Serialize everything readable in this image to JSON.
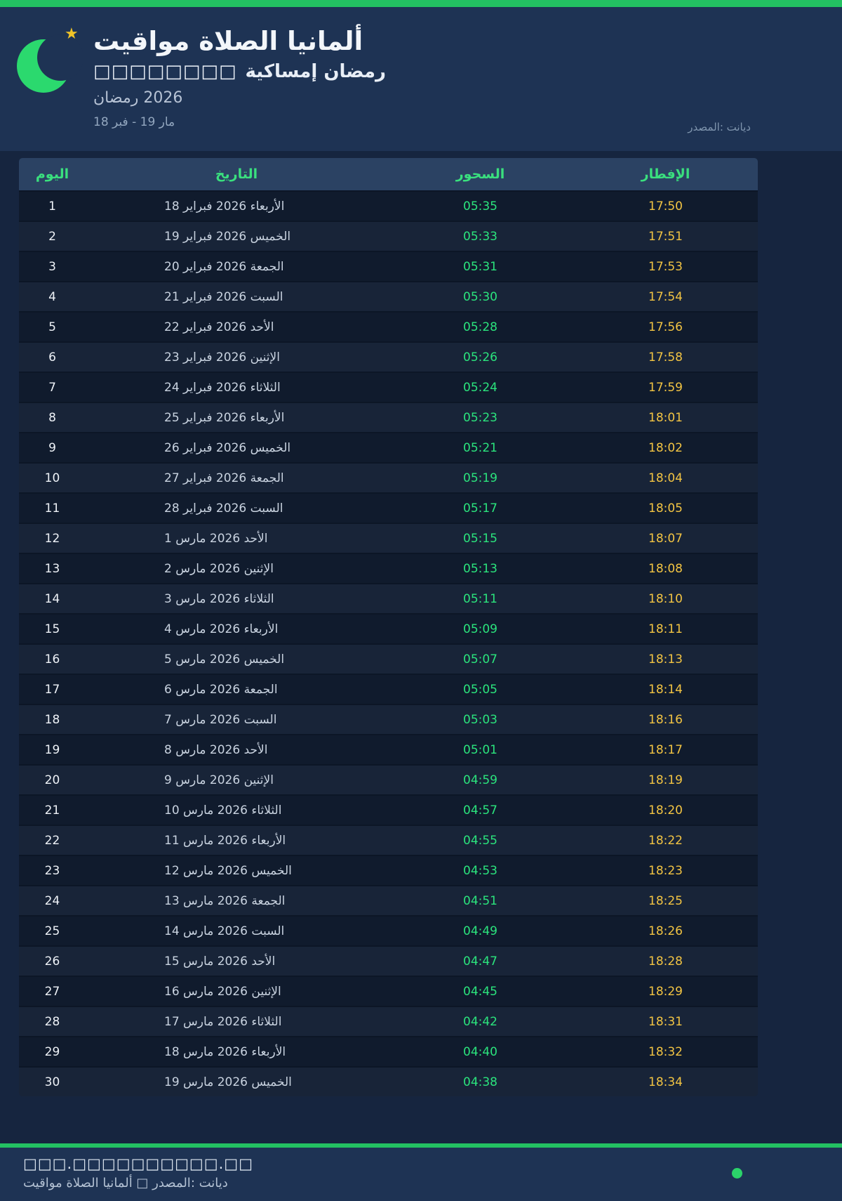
{
  "colors": {
    "accent_green": "#23c162",
    "suhoor_green": "#2be47d",
    "iftar_gold": "#f2c443",
    "header_bg": "#1e3354",
    "panel_bg": "#16253f",
    "row_odd": "#101b2d",
    "row_even": "#182438",
    "table_header_bg": "#2b4263",
    "table_header_text": "#3ae07e"
  },
  "header": {
    "title": "مواقيت‎ الصلاة‎ ألمانيا",
    "subtitle_boxes": "□□□□□□□□",
    "subtitle": "إمساكية‎ رمضان",
    "season": "رمضان‎ 2026",
    "date_range": "18 فبر‎ - 19 مار",
    "source": "المصدر:‎ ديانت",
    "crescent_icon": "crescent-moon",
    "star_icon": "star"
  },
  "table": {
    "columns": [
      "اليوم",
      "التاريخ",
      "السحور",
      "الإفطار"
    ],
    "rows": [
      {
        "day": "1",
        "date": "18 فبراير‎ 2026 الأربعاء",
        "suhoor": "05:35",
        "iftar": "17:50"
      },
      {
        "day": "2",
        "date": "19 فبراير‎ 2026 الخميس",
        "suhoor": "05:33",
        "iftar": "17:51"
      },
      {
        "day": "3",
        "date": "20 فبراير‎ 2026 الجمعة",
        "suhoor": "05:31",
        "iftar": "17:53"
      },
      {
        "day": "4",
        "date": "21 فبراير‎ 2026 السبت",
        "suhoor": "05:30",
        "iftar": "17:54"
      },
      {
        "day": "5",
        "date": "22 فبراير‎ 2026 الأحد",
        "suhoor": "05:28",
        "iftar": "17:56"
      },
      {
        "day": "6",
        "date": "23 فبراير‎ 2026 الإثنين",
        "suhoor": "05:26",
        "iftar": "17:58"
      },
      {
        "day": "7",
        "date": "24 فبراير‎ 2026 الثلاثاء",
        "suhoor": "05:24",
        "iftar": "17:59"
      },
      {
        "day": "8",
        "date": "25 فبراير‎ 2026 الأربعاء",
        "suhoor": "05:23",
        "iftar": "18:01"
      },
      {
        "day": "9",
        "date": "26 فبراير‎ 2026 الخميس",
        "suhoor": "05:21",
        "iftar": "18:02"
      },
      {
        "day": "10",
        "date": "27 فبراير‎ 2026 الجمعة",
        "suhoor": "05:19",
        "iftar": "18:04"
      },
      {
        "day": "11",
        "date": "28 فبراير‎ 2026 السبت",
        "suhoor": "05:17",
        "iftar": "18:05"
      },
      {
        "day": "12",
        "date": "1 مارس‎ 2026 الأحد",
        "suhoor": "05:15",
        "iftar": "18:07"
      },
      {
        "day": "13",
        "date": "2 مارس‎ 2026 الإثنين",
        "suhoor": "05:13",
        "iftar": "18:08"
      },
      {
        "day": "14",
        "date": "3 مارس‎ 2026 الثلاثاء",
        "suhoor": "05:11",
        "iftar": "18:10"
      },
      {
        "day": "15",
        "date": "4 مارس‎ 2026 الأربعاء",
        "suhoor": "05:09",
        "iftar": "18:11"
      },
      {
        "day": "16",
        "date": "5 مارس‎ 2026 الخميس",
        "suhoor": "05:07",
        "iftar": "18:13"
      },
      {
        "day": "17",
        "date": "6 مارس‎ 2026 الجمعة",
        "suhoor": "05:05",
        "iftar": "18:14"
      },
      {
        "day": "18",
        "date": "7 مارس‎ 2026 السبت",
        "suhoor": "05:03",
        "iftar": "18:16"
      },
      {
        "day": "19",
        "date": "8 مارس‎ 2026 الأحد",
        "suhoor": "05:01",
        "iftar": "18:17"
      },
      {
        "day": "20",
        "date": "9 مارس‎ 2026 الإثنين",
        "suhoor": "04:59",
        "iftar": "18:19"
      },
      {
        "day": "21",
        "date": "10 مارس‎ 2026 الثلاثاء",
        "suhoor": "04:57",
        "iftar": "18:20"
      },
      {
        "day": "22",
        "date": "11 مارس‎ 2026 الأربعاء",
        "suhoor": "04:55",
        "iftar": "18:22"
      },
      {
        "day": "23",
        "date": "12 مارس‎ 2026 الخميس",
        "suhoor": "04:53",
        "iftar": "18:23"
      },
      {
        "day": "24",
        "date": "13 مارس‎ 2026 الجمعة",
        "suhoor": "04:51",
        "iftar": "18:25"
      },
      {
        "day": "25",
        "date": "14 مارس‎ 2026 السبت",
        "suhoor": "04:49",
        "iftar": "18:26"
      },
      {
        "day": "26",
        "date": "15 مارس‎ 2026 الأحد",
        "suhoor": "04:47",
        "iftar": "18:28"
      },
      {
        "day": "27",
        "date": "16 مارس‎ 2026 الإثنين",
        "suhoor": "04:45",
        "iftar": "18:29"
      },
      {
        "day": "28",
        "date": "17 مارس‎ 2026 الثلاثاء",
        "suhoor": "04:42",
        "iftar": "18:31"
      },
      {
        "day": "29",
        "date": "18 مارس‎ 2026 الأربعاء",
        "suhoor": "04:40",
        "iftar": "18:32"
      },
      {
        "day": "30",
        "date": "19 مارس‎ 2026 الخميس",
        "suhoor": "04:38",
        "iftar": "18:34"
      }
    ]
  },
  "footer": {
    "url": "□□□.□□□□□□□□□□.□□",
    "credit": "مواقيت‎ الصلاة‎ ألمانيا‎ □ المصدر:‎ ديانت"
  }
}
